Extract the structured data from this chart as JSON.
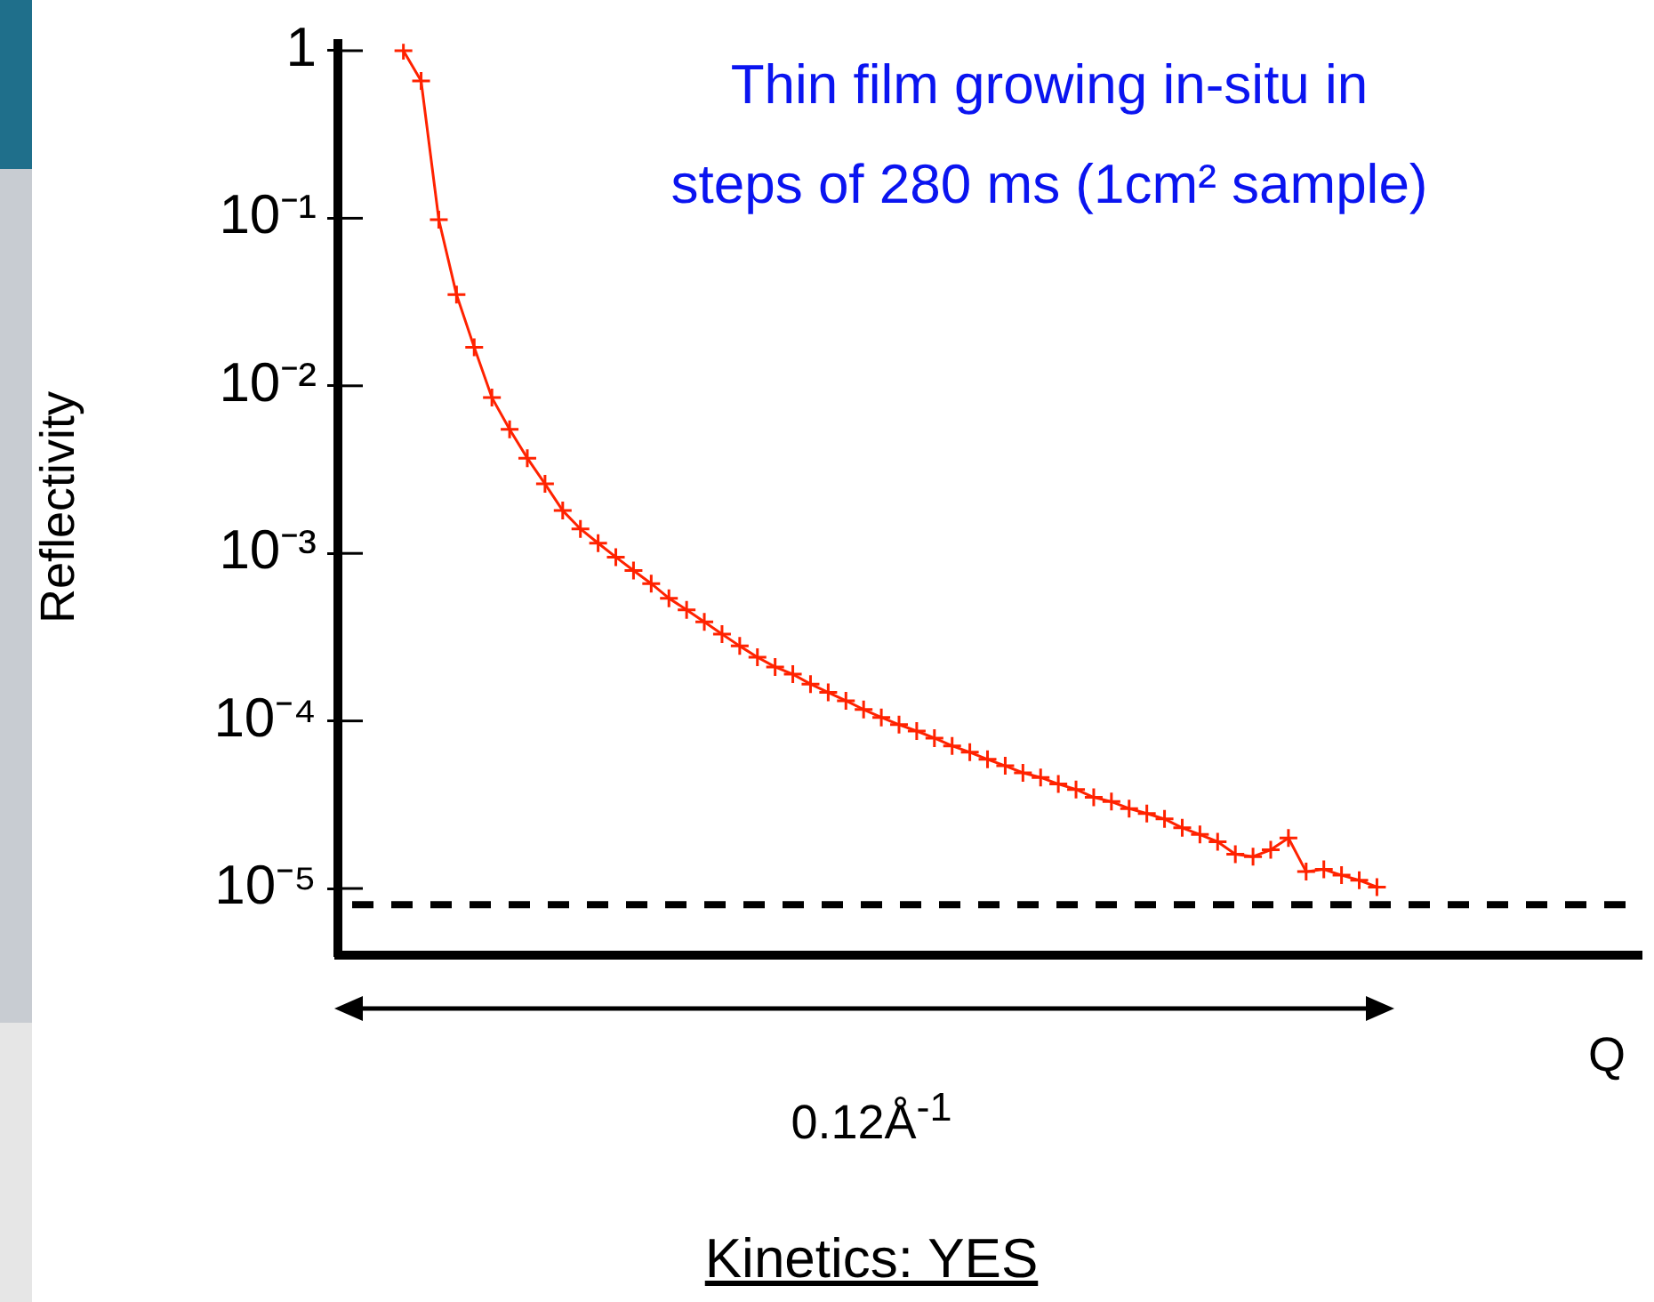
{
  "chart_data": {
    "type": "line",
    "xlabel": "Q",
    "ylabel": "Reflectivity",
    "annotations": [
      "Thin film growing in-situ in steps of 280 ms (1cm² sample)",
      "0.12Å$^{-1}$",
      "Kinetics: YES"
    ],
    "categories": [
      null,
      null,
      null,
      null,
      null,
      null,
      null,
      null,
      null,
      null,
      null,
      null,
      null,
      null,
      null,
      null,
      null,
      null,
      null,
      null,
      null,
      null,
      null,
      null,
      null,
      null,
      null,
      null,
      null,
      null,
      null,
      null,
      null,
      null,
      null,
      null,
      null,
      null,
      null,
      null,
      null,
      null,
      null,
      null,
      null,
      null,
      null,
      null,
      null,
      null,
      null,
      null,
      null,
      null,
      null,
      null
    ],
    "series": [
      {
        "color": "#ff2200",
        "values": [
          1,
          0.66,
          0.098,
          0.035,
          0.017,
          0.0085,
          0.0055,
          0.0037,
          0.0026,
          0.0018,
          0.0014,
          0.00115,
          0.00095,
          0.00079,
          0.00066,
          0.00054,
          0.00046,
          0.00039,
          0.00033,
          0.00028,
          0.00024,
          0.00021,
          0.00019,
          0.000166,
          0.000148,
          0.000132,
          0.000117,
          0.000105,
          9.5e-05,
          8.7e-05,
          7.9e-05,
          7.1e-05,
          6.5e-05,
          5.9e-05,
          5.4e-05,
          4.9e-05,
          4.6e-05,
          4.2e-05,
          3.9e-05,
          3.5e-05,
          3.3e-05,
          3e-05,
          2.8e-05,
          2.6e-05,
          2.3e-05,
          2.1e-05,
          1.9e-05,
          1.6e-05,
          1.55e-05,
          1.7e-05,
          2e-05,
          1.26e-05,
          1.3e-05,
          1.2e-05,
          1.12e-05,
          1.02e-05
        ]
      }
    ],
    "log": "y",
    "ylim": [
      4e-06,
      1.1
    ],
    "yticks": [
      {
        "value": 1e-05,
        "label": "10⁻⁵"
      },
      {
        "value": 0.0001,
        "label": "10⁻⁴"
      },
      {
        "value": 0.001,
        "label": "10⁻³"
      },
      {
        "value": 0.01,
        "label": "10⁻²"
      },
      {
        "value": 0.1,
        "label": "10⁻¹"
      },
      1
    ],
    "ref_lines": [
      {
        "axis": "y",
        "value": 8e-06,
        "color": "#000000",
        "line_style": "dashed"
      }
    ],
    "marker": "cross",
    "line_style": "solid",
    "grid": false,
    "legend": false,
    "tick_labels": "y"
  }
}
